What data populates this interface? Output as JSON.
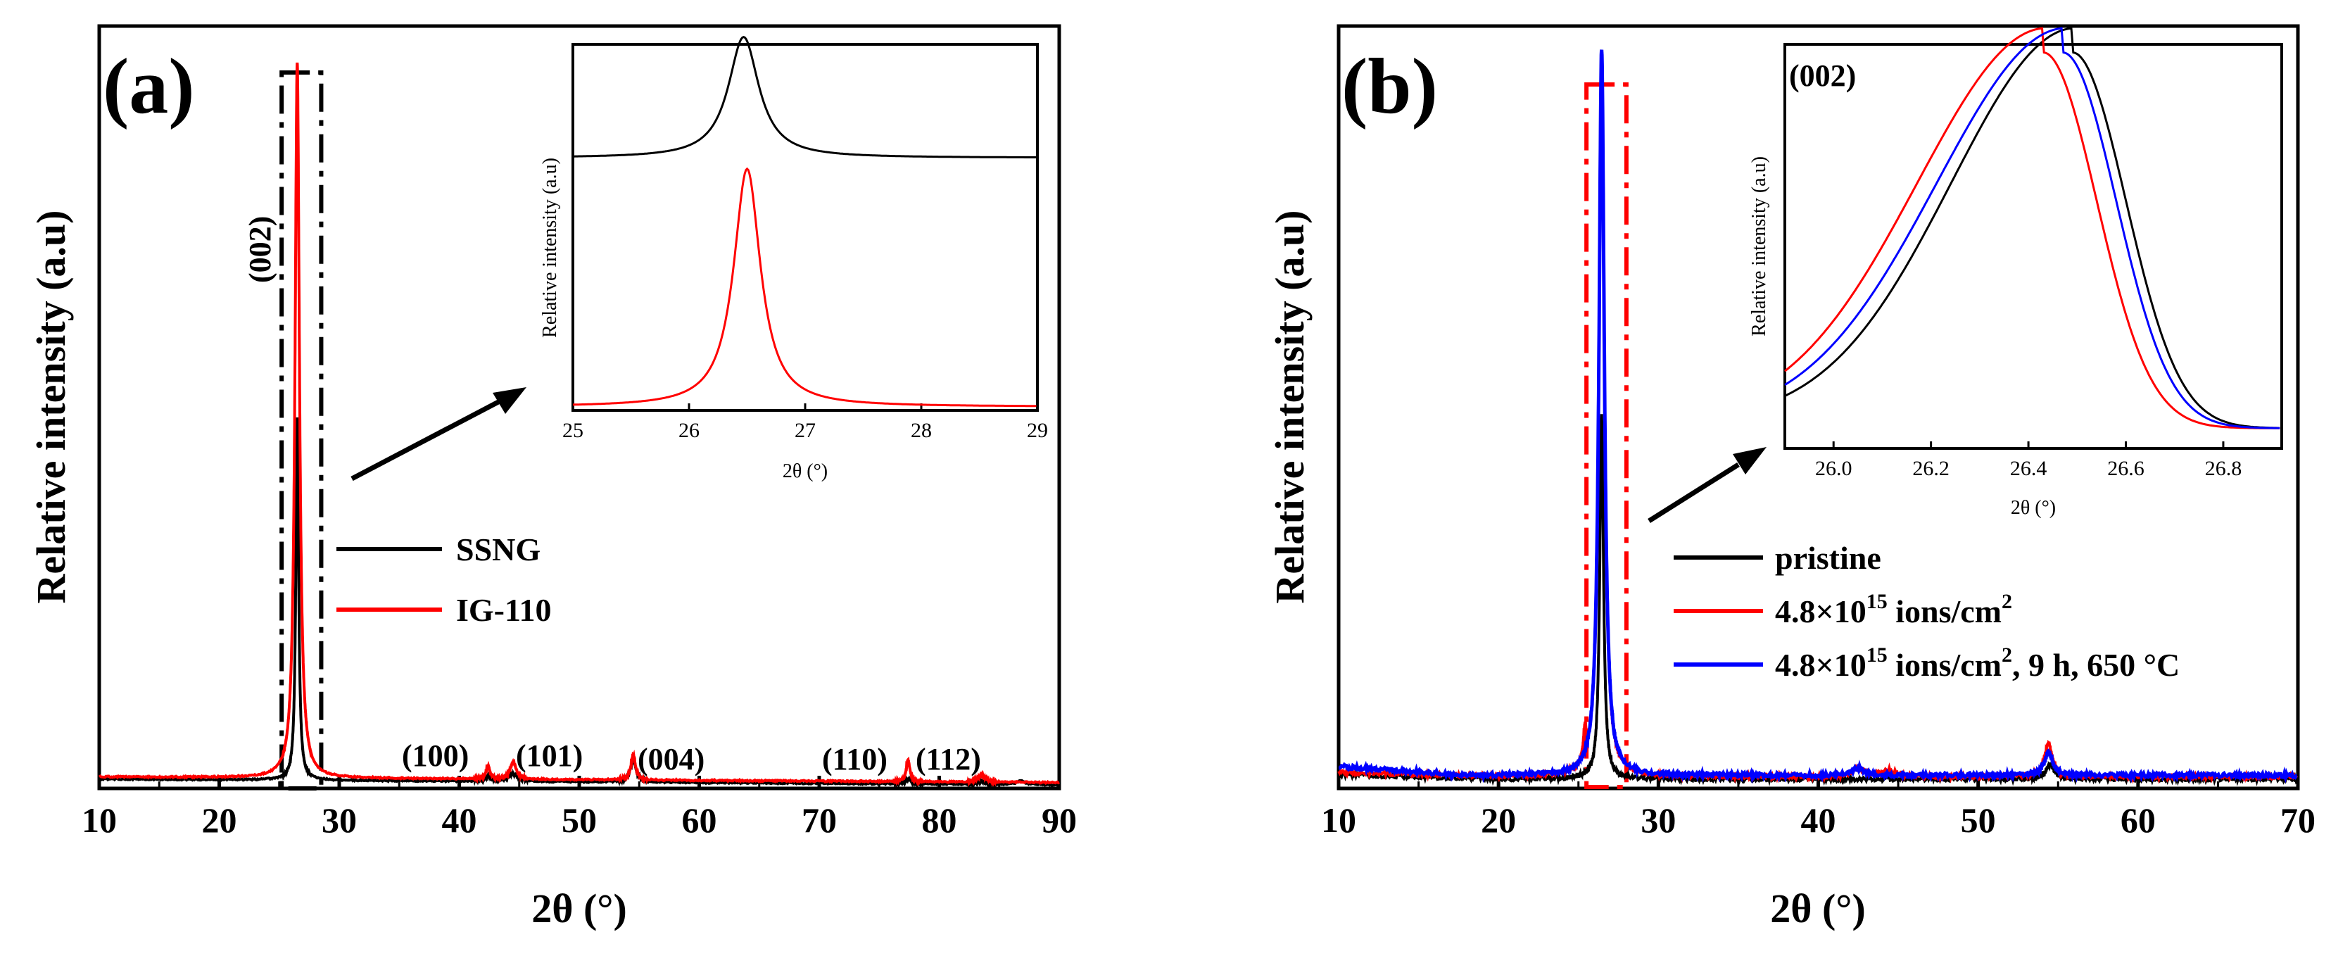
{
  "chart_data": [
    {
      "panel": "(a)",
      "type": "line",
      "xlabel": "2θ (°)",
      "ylabel": "Relative intensity (a.u)",
      "xlim": [
        10,
        90
      ],
      "ylim": [
        0,
        1.05
      ],
      "xticks": [
        10,
        20,
        30,
        40,
        50,
        60,
        70,
        80,
        90
      ],
      "legend": {
        "placement": "center-right",
        "entries": [
          "SSNG",
          "IG-110"
        ]
      },
      "colors": {
        "SSNG": "#000000",
        "IG-110": "#ff0000"
      },
      "series": [
        {
          "name": "SSNG",
          "baseline": 0.013,
          "peaks": [
            [
              26.5,
              0.5,
              0.14
            ],
            [
              42.4,
              0.006,
              0.3
            ],
            [
              44.5,
              0.01,
              0.5
            ],
            [
              54.5,
              0.03,
              0.3
            ],
            [
              77.4,
              0.006,
              0.3
            ],
            [
              83.5,
              0.004,
              0.4
            ],
            [
              86.8,
              0.005,
              0.4
            ]
          ]
        },
        {
          "name": "IG-110",
          "baseline": 0.016,
          "peaks": [
            [
              26.5,
              0.985,
              0.22
            ],
            [
              42.4,
              0.018,
              0.18
            ],
            [
              44.5,
              0.024,
              0.3
            ],
            [
              54.5,
              0.035,
              0.22
            ],
            [
              77.4,
              0.03,
              0.18
            ],
            [
              83.5,
              0.01,
              0.35
            ]
          ]
        }
      ],
      "peak_labels": [
        {
          "text": "(002)",
          "x": 26.5
        },
        {
          "text": "(100)",
          "x": 42.4
        },
        {
          "text": "(101)",
          "x": 44.5
        },
        {
          "text": "(004)",
          "x": 54.5
        },
        {
          "text": "(110)",
          "x": 77.4
        },
        {
          "text": "(112)",
          "x": 83.5
        }
      ],
      "highlight_range": [
        25.2,
        28.5
      ],
      "inset": {
        "type": "line",
        "xlabel": "2θ (°)",
        "ylabel": "Relative intensity (a.u)",
        "xlim": [
          25,
          29
        ],
        "ylim": [
          0,
          1
        ],
        "xticks": [
          25,
          26,
          27,
          28,
          29
        ],
        "series": [
          {
            "name": "SSNG",
            "baseline": 0.69,
            "peak": [
              26.47,
              0.33,
              0.16
            ]
          },
          {
            "name": "IG-110",
            "baseline": 0.01,
            "peak": [
              26.5,
              0.65,
              0.14
            ]
          }
        ]
      }
    },
    {
      "panel": "(b)",
      "type": "line",
      "xlabel": "2θ (°)",
      "ylabel": "Relative intensity (a.u)",
      "xlim": [
        10,
        70
      ],
      "ylim": [
        0,
        1.05
      ],
      "xticks": [
        10,
        20,
        30,
        40,
        50,
        60,
        70
      ],
      "legend": {
        "placement": "center-right",
        "entries": [
          "pristine",
          "4.8×10<sup>15</sup> ions/cm<sup>2</sup>",
          "4.8×10<sup>15</sup> ions/cm<sup>2</sup>, 9 h, 650 °C"
        ]
      },
      "legend_text": {
        "pristine": "pristine",
        "irradiated_prefix": "4.8×10",
        "irradiated_exp": "15",
        "irradiated_unit": " ions/cm",
        "irradiated_unit_exp": "2",
        "annealed_suffix": ", 9 h, 650 °C"
      },
      "colors": {
        "pristine": "#000000",
        "irradiated": "#ff0000",
        "annealed": "#0000ff"
      },
      "series": [
        {
          "name": "pristine",
          "baseline": 0.013,
          "peaks": [
            [
              26.45,
              0.5,
              0.14
            ],
            [
              54.5,
              0.02,
              0.3
            ]
          ]
        },
        {
          "name": "4.8×10^15 ions/cm^2",
          "baseline": 0.016,
          "peaks": [
            [
              26.45,
              0.97,
              0.2
            ],
            [
              25.4,
              0.04,
              0.1
            ],
            [
              42.5,
              0.012,
              0.4
            ],
            [
              44.4,
              0.01,
              0.5
            ],
            [
              54.4,
              0.045,
              0.3
            ]
          ]
        },
        {
          "name": "4.8×10^15 ions/cm^2, 9 h, 650 °C",
          "baseline": 0.018,
          "peaks": [
            [
              26.45,
              1.0,
              0.2
            ],
            [
              42.5,
              0.01,
              0.4
            ],
            [
              54.4,
              0.032,
              0.3
            ]
          ]
        }
      ],
      "highlight_range": [
        25.5,
        28.0
      ],
      "inset": {
        "type": "line",
        "tag": "(002)",
        "xlabel": "2θ (°)",
        "ylabel": "Relative intensity (a.u)",
        "xlim": [
          25.9,
          26.92
        ],
        "ylim": [
          0,
          1
        ],
        "xticks": [
          26.0,
          26.2,
          26.4,
          26.6,
          26.8
        ],
        "series": [
          {
            "name": "pristine",
            "center": 26.49,
            "left_width": 0.25,
            "right_width": 0.11
          },
          {
            "name": "irradiated",
            "center": 26.43,
            "left_width": 0.26,
            "right_width": 0.11
          },
          {
            "name": "annealed",
            "center": 26.47,
            "left_width": 0.26,
            "right_width": 0.11
          }
        ]
      }
    }
  ]
}
